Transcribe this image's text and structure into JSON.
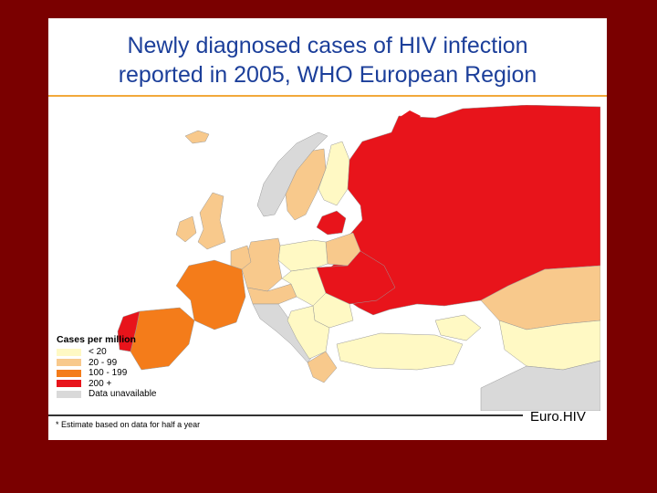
{
  "title": {
    "line1": "Newly diagnosed cases of HIV infection",
    "line2": "reported in 2005, WHO European Region"
  },
  "legend": {
    "title": "Cases per million",
    "items": [
      {
        "label": "< 20",
        "color": "#fff9c4"
      },
      {
        "label": "20 - 99",
        "color": "#f8c98c"
      },
      {
        "label": "100 - 199",
        "color": "#f47c1a"
      },
      {
        "label": "200 +",
        "color": "#e8141b"
      },
      {
        "label": "Data unavailable",
        "color": "#d9d9d9"
      }
    ]
  },
  "footnote": "* Estimate based on data for half a year",
  "logo": "Euro.HIV",
  "colors": {
    "title": "#1c3f9a",
    "accent_rule": "#f2a93b",
    "background": "#7a0000"
  }
}
